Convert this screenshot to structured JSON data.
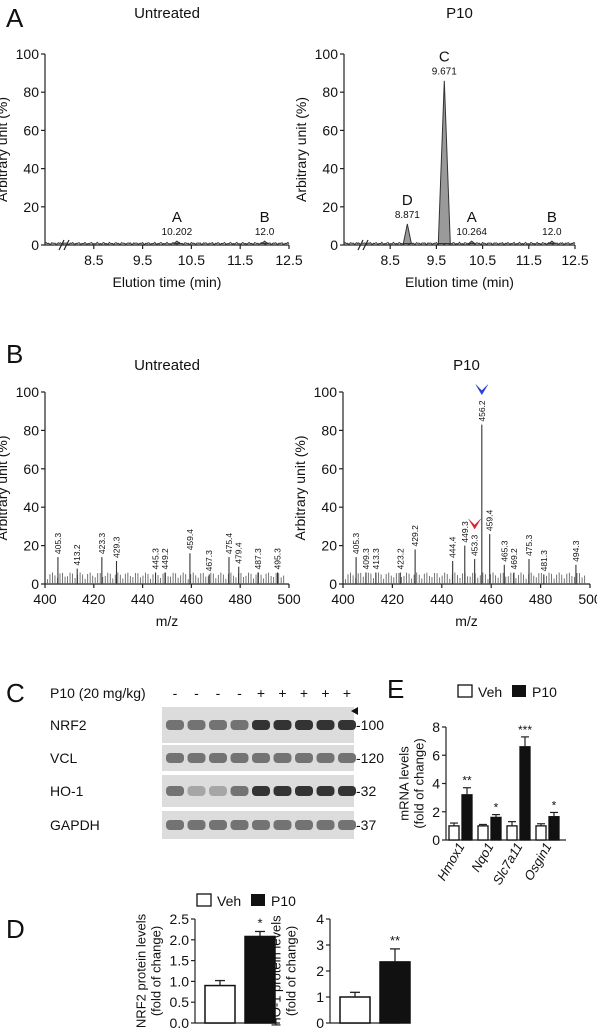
{
  "panel_letters": {
    "A": "A",
    "B": "B",
    "C": "C",
    "D": "D",
    "E": "E"
  },
  "chart_data": [
    {
      "id": "A-untreated",
      "type": "line",
      "title": "Untreated",
      "xlabel": "Elution time (min)",
      "ylabel": "Arbitrary unit (%)",
      "xlim": [
        7.5,
        12.5
      ],
      "ylim": [
        0,
        100
      ],
      "xticks": [
        "8.5",
        "9.5",
        "10.5",
        "11.5",
        "12.5"
      ],
      "yticks": [
        "0",
        "20",
        "40",
        "60",
        "80",
        "100"
      ],
      "peaks": [
        {
          "label": "A",
          "x": 10.202,
          "value_label": "10.202",
          "height": 2
        },
        {
          "label": "B",
          "x": 12.0,
          "value_label": "12.0",
          "height": 2
        }
      ]
    },
    {
      "id": "A-p10",
      "type": "line",
      "title": "P10",
      "xlabel": "Elution time (min)",
      "ylabel": "Arbitrary unit (%)",
      "xlim": [
        7.5,
        12.5
      ],
      "ylim": [
        0,
        100
      ],
      "xticks": [
        "8.5",
        "9.5",
        "10.5",
        "11.5",
        "12.5"
      ],
      "yticks": [
        "0",
        "20",
        "40",
        "60",
        "80",
        "100"
      ],
      "peaks": [
        {
          "label": "D",
          "x": 8.871,
          "value_label": "8.871",
          "height": 11
        },
        {
          "label": "C",
          "x": 9.671,
          "value_label": "9.671",
          "height": 86
        },
        {
          "label": "A",
          "x": 10.264,
          "value_label": "10.264",
          "height": 2
        },
        {
          "label": "B",
          "x": 12.0,
          "value_label": "12.0",
          "height": 2
        }
      ]
    },
    {
      "id": "B-untreated",
      "type": "bar",
      "title": "Untreated",
      "xlabel": "m/z",
      "ylabel": "Arbitrary unit (%)",
      "xlim": [
        400,
        500
      ],
      "ylim": [
        0,
        100
      ],
      "xticks": [
        "400",
        "420",
        "440",
        "460",
        "480",
        "500"
      ],
      "yticks": [
        "0",
        "20",
        "40",
        "60",
        "80",
        "100"
      ],
      "peaks": [
        {
          "mz": 405.3,
          "label": "405.3",
          "value": 14
        },
        {
          "mz": 413.2,
          "label": "413.2",
          "value": 8
        },
        {
          "mz": 423.3,
          "label": "423.3",
          "value": 14
        },
        {
          "mz": 429.3,
          "label": "429.3",
          "value": 12
        },
        {
          "mz": 445.3,
          "label": "445.3",
          "value": 6
        },
        {
          "mz": 449.2,
          "label": "449.2",
          "value": 6
        },
        {
          "mz": 459.4,
          "label": "459.4",
          "value": 16
        },
        {
          "mz": 467.3,
          "label": "467.3",
          "value": 5
        },
        {
          "mz": 475.4,
          "label": "475.4",
          "value": 14
        },
        {
          "mz": 479.4,
          "label": "479.4",
          "value": 9
        },
        {
          "mz": 487.3,
          "label": "487.3",
          "value": 6
        },
        {
          "mz": 495.3,
          "label": "495.3",
          "value": 6
        }
      ]
    },
    {
      "id": "B-p10",
      "type": "bar",
      "title": "P10",
      "xlabel": "m/z",
      "ylabel": "Arbitrary unit (%)",
      "xlim": [
        400,
        500
      ],
      "ylim": [
        0,
        100
      ],
      "xticks": [
        "400",
        "420",
        "440",
        "460",
        "480",
        "500"
      ],
      "yticks": [
        "0",
        "20",
        "40",
        "60",
        "80",
        "100"
      ],
      "peaks": [
        {
          "mz": 405.3,
          "label": "405.3",
          "value": 14
        },
        {
          "mz": 409.3,
          "label": "409.3",
          "value": 6
        },
        {
          "mz": 413.3,
          "label": "413.3",
          "value": 6
        },
        {
          "mz": 423.2,
          "label": "423.2",
          "value": 6
        },
        {
          "mz": 429.2,
          "label": "429.2",
          "value": 18
        },
        {
          "mz": 444.4,
          "label": "444.4",
          "value": 12
        },
        {
          "mz": 449.3,
          "label": "449.3",
          "value": 20
        },
        {
          "mz": 453.3,
          "label": "453.3",
          "value": 13
        },
        {
          "mz": 456.2,
          "label": "456.2",
          "value": 83
        },
        {
          "mz": 459.4,
          "label": "459.4",
          "value": 26
        },
        {
          "mz": 465.3,
          "label": "465.3",
          "value": 10
        },
        {
          "mz": 469.2,
          "label": "469.2",
          "value": 6
        },
        {
          "mz": 475.3,
          "label": "475.3",
          "value": 13
        },
        {
          "mz": 481.3,
          "label": "481.3",
          "value": 5
        },
        {
          "mz": 494.3,
          "label": "494.3",
          "value": 10
        }
      ],
      "markers": [
        {
          "mz": 456.2,
          "color": "#2b3fd6"
        },
        {
          "mz": 453.3,
          "color": "#e0262c"
        }
      ]
    },
    {
      "id": "D-nrf2",
      "type": "bar",
      "ylabel": "NRF2 protein levels\n(fold of change)",
      "ylim": [
        0,
        2.5
      ],
      "yticks": [
        "0.0",
        "0.5",
        "1.0",
        "1.5",
        "2.0",
        "2.5"
      ],
      "series": [
        {
          "name": "Veh",
          "value": 0.9,
          "error": 0.12,
          "sig": ""
        },
        {
          "name": "P10",
          "value": 2.08,
          "error": 0.12,
          "sig": "*"
        }
      ]
    },
    {
      "id": "D-ho1",
      "type": "bar",
      "ylabel": "HO-1 protein levels\n(fold of change)",
      "ylim": [
        0,
        4
      ],
      "yticks": [
        "0",
        "1",
        "2",
        "3",
        "4"
      ],
      "series": [
        {
          "name": "Veh",
          "value": 1.0,
          "error": 0.18,
          "sig": ""
        },
        {
          "name": "P10",
          "value": 2.35,
          "error": 0.5,
          "sig": "**"
        }
      ]
    },
    {
      "id": "E-mrna",
      "type": "bar",
      "ylabel": "mRNA levels\n(fold of change)",
      "ylim": [
        0,
        8
      ],
      "yticks": [
        "0",
        "2",
        "4",
        "6",
        "8"
      ],
      "categories": [
        "Hmox1",
        "Nqo1",
        "Slc7a11",
        "Osgin1"
      ],
      "series": [
        {
          "name": "Veh",
          "values": [
            1.0,
            1.0,
            1.0,
            1.0
          ],
          "errors": [
            0.2,
            0.1,
            0.3,
            0.15
          ]
        },
        {
          "name": "P10",
          "values": [
            3.2,
            1.6,
            6.6,
            1.65
          ],
          "errors": [
            0.5,
            0.2,
            0.7,
            0.3
          ],
          "sig": [
            "**",
            "*",
            "***",
            "*"
          ]
        }
      ]
    }
  ],
  "legend": {
    "veh": "Veh",
    "p10": "P10"
  },
  "blot": {
    "treatment_label": "P10 (20 mg/kg)",
    "lanes": [
      "-",
      "-",
      "-",
      "-",
      "+",
      "+",
      "+",
      "+",
      "+"
    ],
    "rows": [
      {
        "name": "NRF2",
        "mw": "-100"
      },
      {
        "name": "VCL",
        "mw": "-120"
      },
      {
        "name": "HO-1",
        "mw": "-32"
      },
      {
        "name": "GAPDH",
        "mw": "-37"
      }
    ]
  }
}
